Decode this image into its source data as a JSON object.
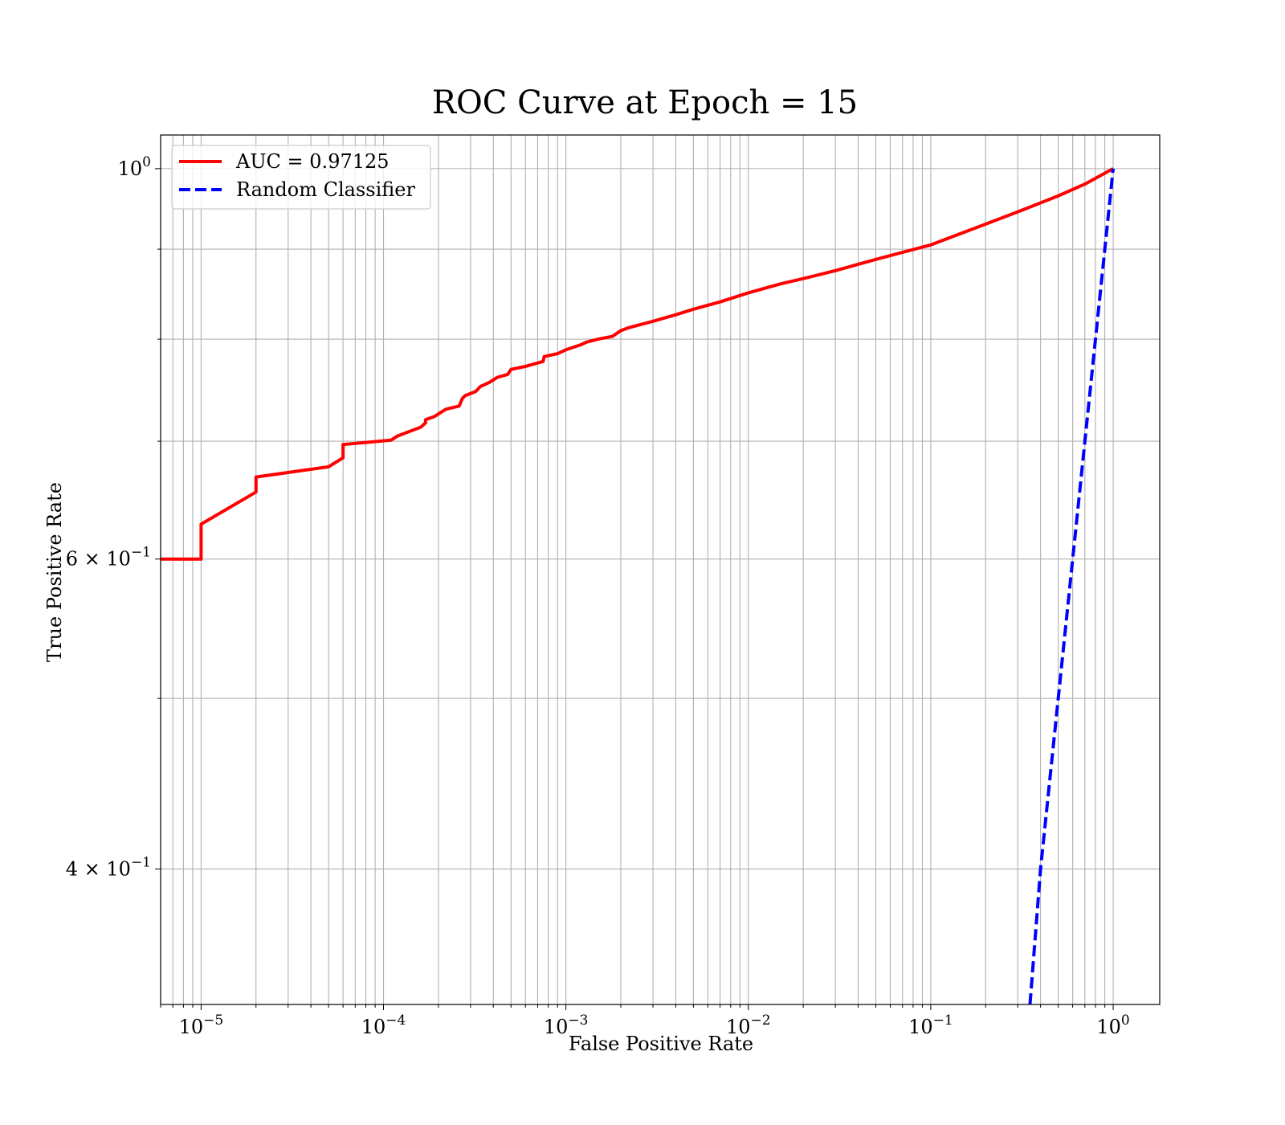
{
  "chart_data": {
    "type": "line",
    "title": "ROC Curve at Epoch = 15",
    "xlabel": "False Positive Rate",
    "ylabel": "True Positive Rate",
    "xscale": "log",
    "yscale": "log",
    "xlim": [
      6e-06,
      1.8
    ],
    "ylim": [
      0.335,
      1.045
    ],
    "grid": "major and minor",
    "legend_position": "upper left",
    "xticks": [
      {
        "value": 1e-05,
        "base": "10",
        "exp": "−5"
      },
      {
        "value": 0.0001,
        "base": "10",
        "exp": "−4"
      },
      {
        "value": 0.001,
        "base": "10",
        "exp": "−3"
      },
      {
        "value": 0.01,
        "base": "10",
        "exp": "−2"
      },
      {
        "value": 0.1,
        "base": "10",
        "exp": "−1"
      },
      {
        "value": 1,
        "base": "10",
        "exp": "0"
      }
    ],
    "yticks": [
      {
        "value": 0.4,
        "base": "4 × 10",
        "exp": "−1"
      },
      {
        "value": 0.6,
        "base": "6 × 10",
        "exp": "−1"
      },
      {
        "value": 1.0,
        "base": "10",
        "exp": "0"
      }
    ],
    "y_minor_ticks": [
      0.5,
      0.7,
      0.8,
      0.9
    ],
    "series": [
      {
        "name": "AUC = 0.97125",
        "color": "#ff0000",
        "dash": "solid",
        "points": [
          [
            6e-06,
            0.6
          ],
          [
            1e-05,
            0.6
          ],
          [
            1e-05,
            0.628
          ],
          [
            2e-05,
            0.655
          ],
          [
            2e-05,
            0.668
          ],
          [
            5e-05,
            0.677
          ],
          [
            6e-05,
            0.685
          ],
          [
            6e-05,
            0.697
          ],
          [
            0.00011,
            0.701
          ],
          [
            0.00012,
            0.705
          ],
          [
            0.00016,
            0.713
          ],
          [
            0.00017,
            0.717
          ],
          [
            0.00017,
            0.72
          ],
          [
            0.00019,
            0.723
          ],
          [
            0.00022,
            0.73
          ],
          [
            0.00026,
            0.733
          ],
          [
            0.00027,
            0.74
          ],
          [
            0.00028,
            0.743
          ],
          [
            0.00032,
            0.747
          ],
          [
            0.00034,
            0.752
          ],
          [
            0.00038,
            0.756
          ],
          [
            0.00042,
            0.761
          ],
          [
            0.00048,
            0.764
          ],
          [
            0.0005,
            0.769
          ],
          [
            0.0006,
            0.772
          ],
          [
            0.00075,
            0.777
          ],
          [
            0.00076,
            0.782
          ],
          [
            0.0009,
            0.785
          ],
          [
            0.001,
            0.789
          ],
          [
            0.0012,
            0.794
          ],
          [
            0.0013,
            0.797
          ],
          [
            0.0015,
            0.8
          ],
          [
            0.0018,
            0.803
          ],
          [
            0.002,
            0.809
          ],
          [
            0.0022,
            0.812
          ],
          [
            0.003,
            0.819
          ],
          [
            0.004,
            0.826
          ],
          [
            0.005,
            0.832
          ],
          [
            0.007,
            0.84
          ],
          [
            0.01,
            0.85
          ],
          [
            0.015,
            0.86
          ],
          [
            0.02,
            0.866
          ],
          [
            0.03,
            0.875
          ],
          [
            0.05,
            0.888
          ],
          [
            0.1,
            0.905
          ],
          [
            0.2,
            0.93
          ],
          [
            0.3,
            0.945
          ],
          [
            0.5,
            0.965
          ],
          [
            0.7,
            0.98
          ],
          [
            1.0,
            1.0
          ]
        ]
      },
      {
        "name": "Random Classifier",
        "color": "#0000ff",
        "dash": "dashed",
        "points": [
          [
            0.35,
            0.335
          ],
          [
            0.4,
            0.4
          ],
          [
            0.5,
            0.5
          ],
          [
            0.6,
            0.6
          ],
          [
            0.8,
            0.8
          ],
          [
            1.0,
            1.0
          ]
        ]
      }
    ]
  }
}
